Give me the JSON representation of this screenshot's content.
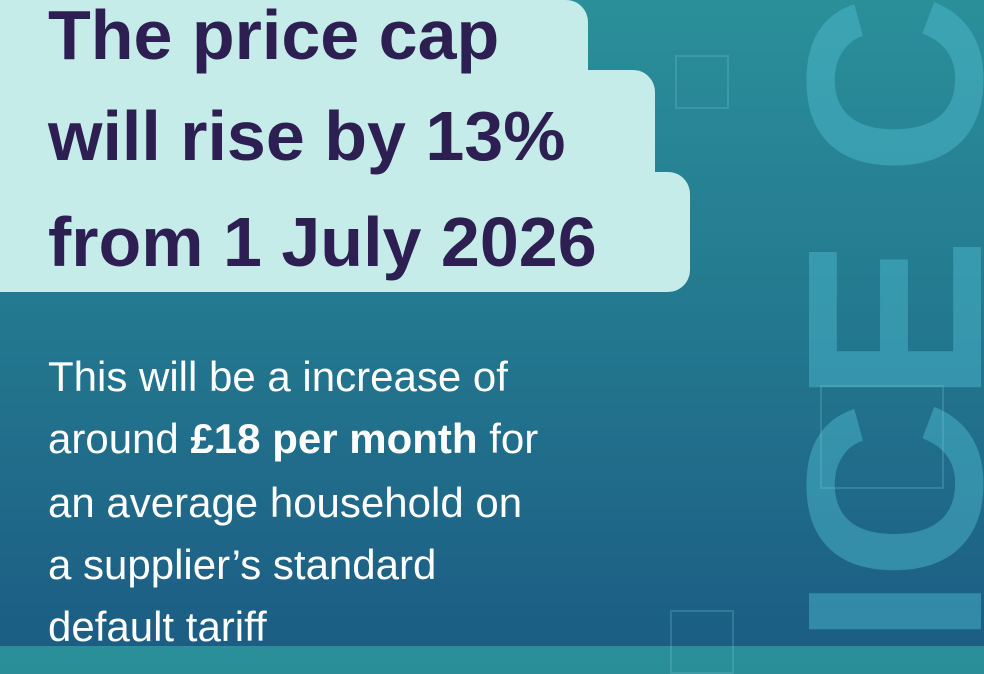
{
  "headline": {
    "line1": "The price cap",
    "line2": "will rise by 13%",
    "line3": "from 1 July 2026"
  },
  "body": {
    "line1": "This will be a increase of",
    "line2_before": "around",
    "line2_bold": "£18 per month",
    "line2_after": "for",
    "line3": "an average household on",
    "line4": "a supplier’s standard",
    "line5": "default tariff"
  },
  "decorative_text": "ICE CAP"
}
